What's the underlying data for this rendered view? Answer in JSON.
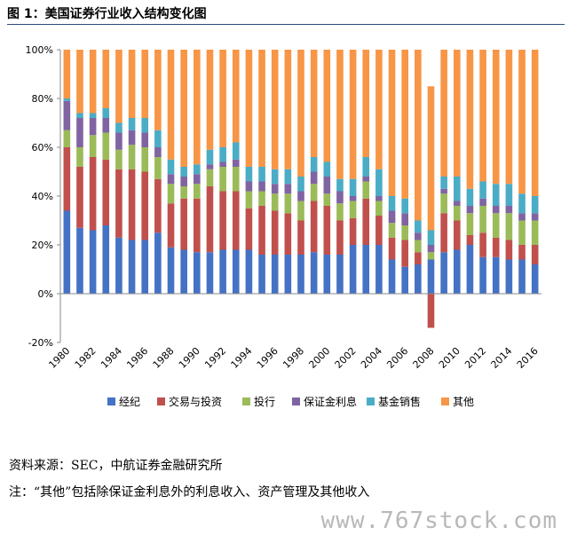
{
  "title": "图 1：美国证券行业收入结构变化图",
  "source": "资料来源：SEC，中航证券金融研究所",
  "note": "注：“其他”包括除保证金利息外的利息收入、资产管理及其他收入",
  "watermark": "www.767stock.com",
  "chart_data": {
    "type": "bar",
    "stacked": true,
    "categories": [
      "1980",
      "1981",
      "1982",
      "1983",
      "1984",
      "1985",
      "1986",
      "1987",
      "1988",
      "1989",
      "1990",
      "1991",
      "1992",
      "1993",
      "1994",
      "1995",
      "1996",
      "1997",
      "1998",
      "1999",
      "2000",
      "2001",
      "2002",
      "2003",
      "2004",
      "2005",
      "2006",
      "2007",
      "2008",
      "2009",
      "2010",
      "2011",
      "2012",
      "2013",
      "2014",
      "2015",
      "2016"
    ],
    "x_tick_labels": [
      "1980",
      "1982",
      "1984",
      "1986",
      "1988",
      "1990",
      "1992",
      "1994",
      "1996",
      "1998",
      "2000",
      "2002",
      "2004",
      "2006",
      "2008",
      "2010",
      "2012",
      "2014",
      "2016"
    ],
    "ylim": [
      -20,
      100
    ],
    "y_ticks": [
      -20,
      0,
      20,
      40,
      60,
      80,
      100
    ],
    "y_tick_labels": [
      "-20%",
      "0%",
      "20%",
      "40%",
      "60%",
      "80%",
      "100%"
    ],
    "grid": false,
    "legend_position": "bottom",
    "series": [
      {
        "name": "经纪",
        "color": "#4472c4",
        "values": [
          34,
          27,
          26,
          28,
          23,
          22,
          22,
          25,
          19,
          18,
          17,
          17,
          18,
          18,
          18,
          16,
          16,
          16,
          16,
          17,
          16,
          16,
          20,
          20,
          20,
          14,
          11,
          12,
          14,
          17,
          18,
          20,
          15,
          15,
          14,
          14,
          12
        ]
      },
      {
        "name": "交易与投资",
        "color": "#c0504d",
        "values": [
          26,
          25,
          30,
          27,
          28,
          29,
          28,
          22,
          18,
          21,
          22,
          27,
          24,
          24,
          17,
          20,
          18,
          17,
          14,
          21,
          20,
          14,
          11,
          19,
          12,
          9,
          11,
          5,
          -14,
          16,
          12,
          4,
          10,
          8,
          8,
          6,
          8
        ]
      },
      {
        "name": "投行",
        "color": "#9bbb59",
        "values": [
          7,
          8,
          9,
          11,
          8,
          10,
          10,
          9,
          8,
          5,
          6,
          7,
          10,
          10,
          7,
          6,
          7,
          8,
          8,
          7,
          5,
          7,
          7,
          7,
          6,
          6,
          6,
          5,
          3,
          8,
          6,
          9,
          11,
          10,
          11,
          10,
          10
        ]
      },
      {
        "name": "保证金利息",
        "color": "#8064a2",
        "values": [
          12,
          12,
          7,
          6,
          7,
          6,
          6,
          4,
          4,
          4,
          4,
          2,
          2,
          3,
          4,
          4,
          4,
          4,
          4,
          5,
          7,
          5,
          2,
          2,
          2,
          5,
          5,
          3,
          3,
          2,
          2,
          3,
          3,
          3,
          3,
          3,
          3
        ]
      },
      {
        "name": "基金销售",
        "color": "#4bacc6",
        "values": [
          1,
          2,
          2,
          4,
          4,
          5,
          6,
          7,
          6,
          4,
          4,
          6,
          6,
          7,
          6,
          6,
          6,
          6,
          6,
          6,
          6,
          5,
          7,
          8,
          11,
          6,
          6,
          5,
          6,
          5,
          10,
          7,
          7,
          9,
          9,
          8,
          7
        ]
      },
      {
        "name": "其他",
        "color": "#f79646",
        "values": [
          20,
          26,
          26,
          24,
          30,
          28,
          28,
          33,
          45,
          48,
          47,
          41,
          40,
          38,
          48,
          48,
          49,
          49,
          52,
          44,
          46,
          53,
          53,
          44,
          49,
          60,
          61,
          70,
          59,
          52,
          52,
          57,
          54,
          55,
          55,
          59,
          60
        ]
      }
    ]
  }
}
